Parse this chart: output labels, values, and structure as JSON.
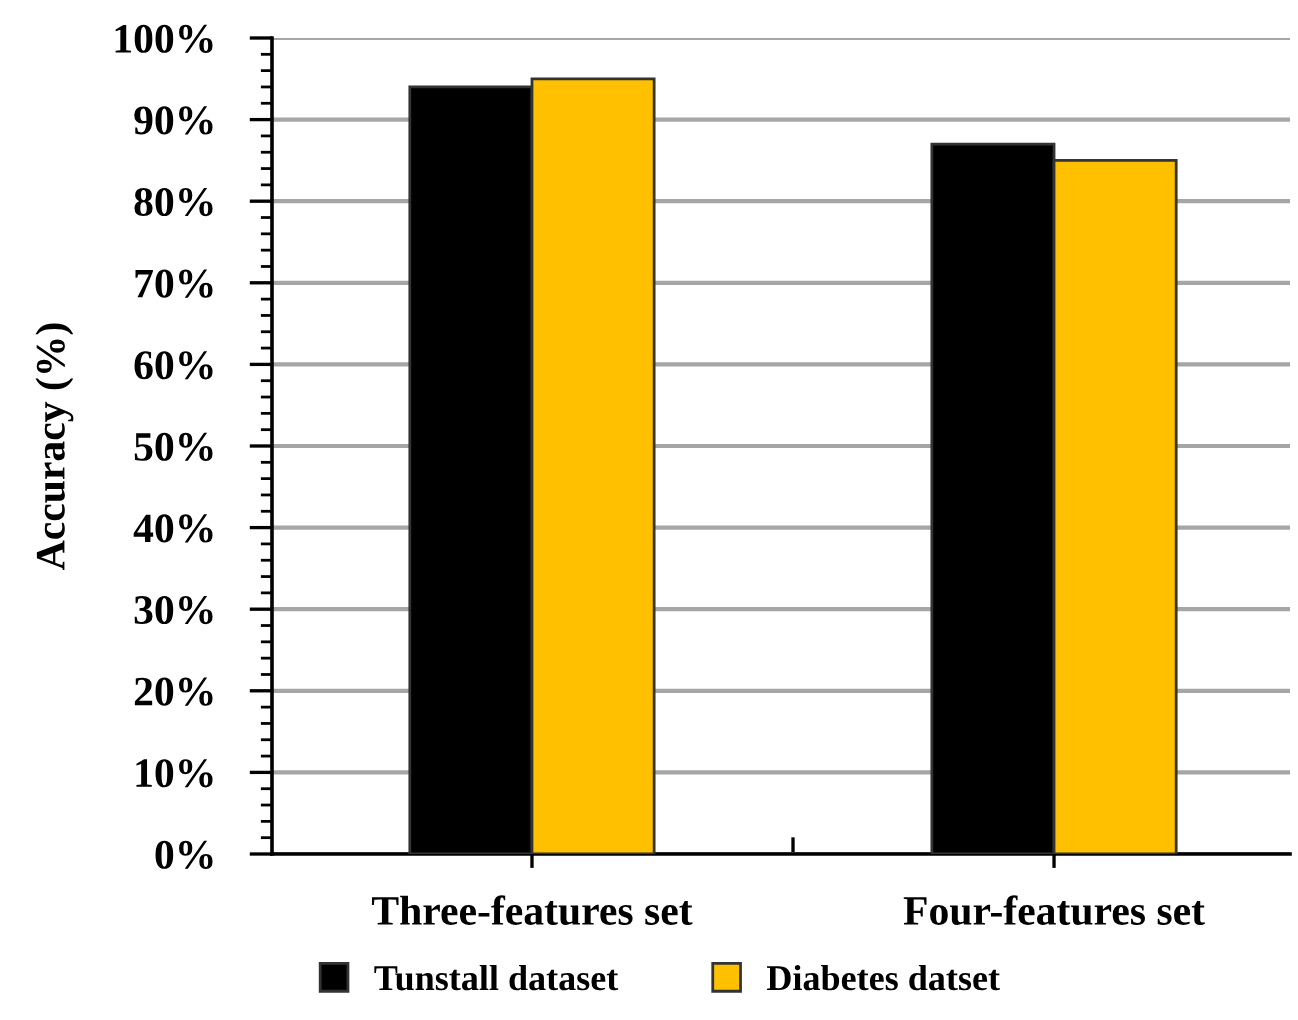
{
  "chart_data": {
    "type": "bar",
    "ylabel": "Accuracy (%)",
    "categories": [
      "Three-features set",
      "Four-features set"
    ],
    "series": [
      {
        "name": "Tunstall dataset",
        "color": "#000000",
        "values": [
          94,
          87
        ]
      },
      {
        "name": "Diabetes datset",
        "color": "#ffc000",
        "values": [
          95,
          85
        ]
      }
    ],
    "ylim": [
      0,
      100
    ],
    "yticks": [
      {
        "value": 0,
        "label": "0%"
      },
      {
        "value": 10,
        "label": "10%"
      },
      {
        "value": 20,
        "label": "20%"
      },
      {
        "value": 30,
        "label": "30%"
      },
      {
        "value": 40,
        "label": "40%"
      },
      {
        "value": 50,
        "label": "50%"
      },
      {
        "value": 60,
        "label": "60%"
      },
      {
        "value": 70,
        "label": "70%"
      },
      {
        "value": 80,
        "label": "80%"
      },
      {
        "value": 90,
        "label": "90%"
      },
      {
        "value": 100,
        "label": "100%"
      }
    ],
    "grid": "y",
    "legend": "bottom"
  }
}
